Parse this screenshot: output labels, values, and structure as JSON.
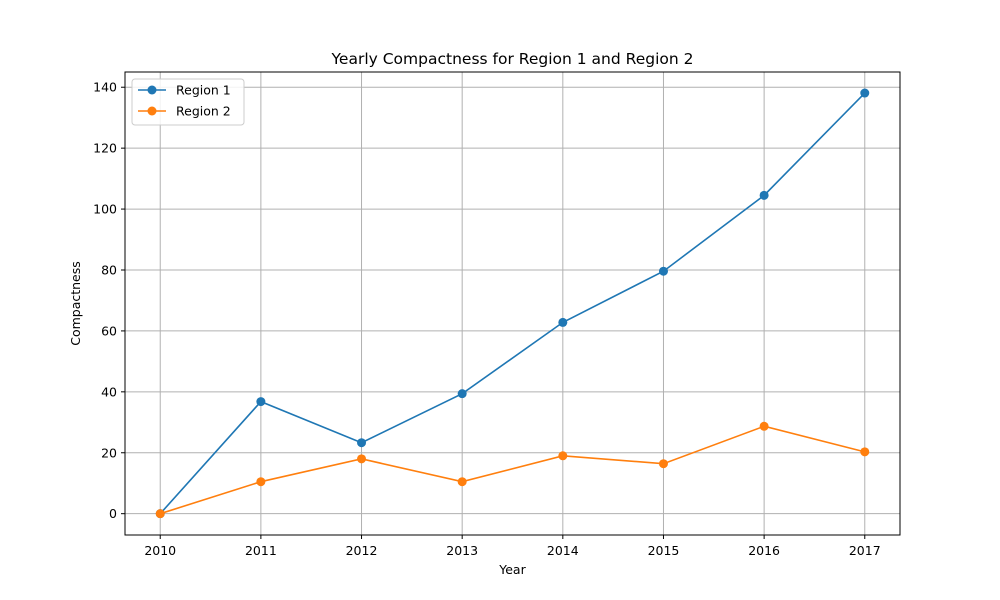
{
  "chart_data": {
    "type": "line",
    "title": "Yearly Compactness for Region 1 and Region 2",
    "xlabel": "Year",
    "ylabel": "Compactness",
    "x": [
      2010,
      2011,
      2012,
      2013,
      2014,
      2015,
      2016,
      2017
    ],
    "xlim": [
      2009.65,
      2017.35
    ],
    "ylim": [
      -7,
      145
    ],
    "yticks": [
      0,
      20,
      40,
      60,
      80,
      100,
      120,
      140
    ],
    "grid": true,
    "legend": "top-left",
    "series": [
      {
        "name": "Region 1",
        "color": "#1f77b4",
        "marker": "circle",
        "values": [
          0,
          36.8,
          23.3,
          39.4,
          62.8,
          79.6,
          104.5,
          138.1
        ]
      },
      {
        "name": "Region 2",
        "color": "#ff7f0e",
        "marker": "circle",
        "values": [
          0,
          10.5,
          18.0,
          10.5,
          19.0,
          16.4,
          28.7,
          20.3
        ]
      }
    ]
  }
}
